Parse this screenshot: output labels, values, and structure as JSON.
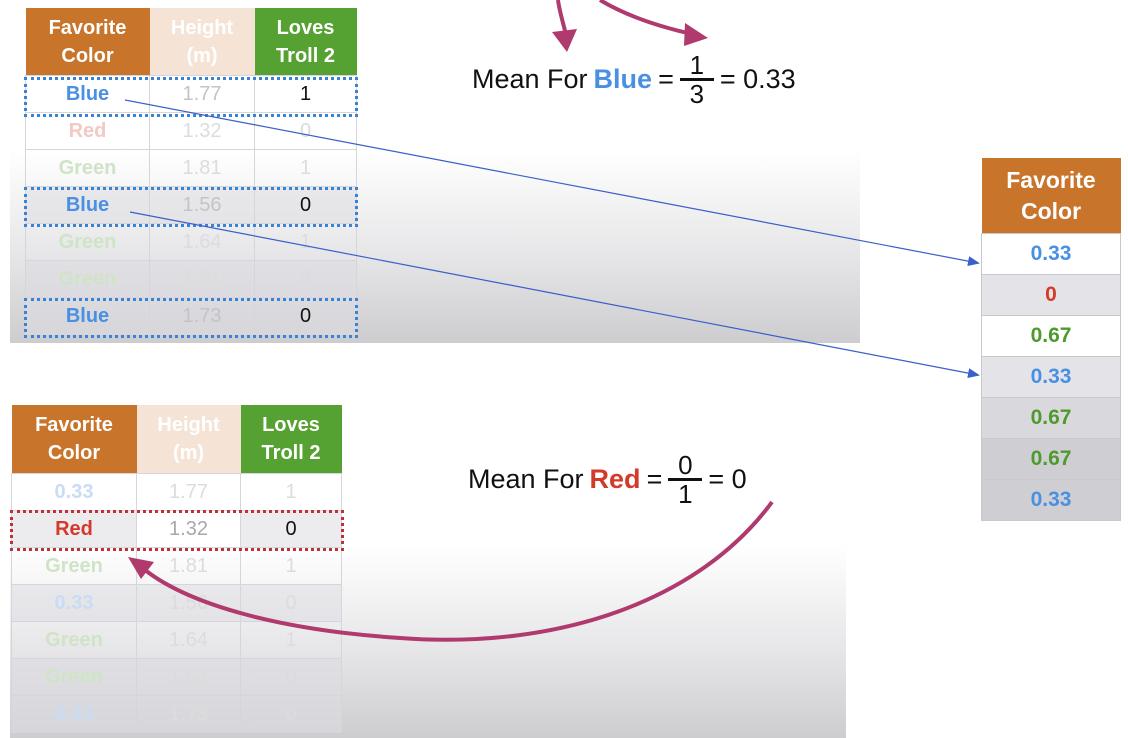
{
  "table1": {
    "headers": {
      "color": "Favorite Color",
      "height": "Height (m)",
      "loves": "Loves Troll 2"
    },
    "rows": [
      {
        "color": "Blue",
        "height": "1.77",
        "loves": "1"
      },
      {
        "color": "Red",
        "height": "1.32",
        "loves": "0"
      },
      {
        "color": "Green",
        "height": "1.81",
        "loves": "1"
      },
      {
        "color": "Blue",
        "height": "1.56",
        "loves": "0"
      },
      {
        "color": "Green",
        "height": "1.64",
        "loves": "1"
      },
      {
        "color": "Green",
        "height": "1.61",
        "loves": "0"
      },
      {
        "color": "Blue",
        "height": "1.73",
        "loves": "0"
      }
    ]
  },
  "equation_blue": {
    "prefix": "Mean For",
    "keyword": "Blue",
    "equals": "=",
    "numerator": "1",
    "denominator": "3",
    "result": "= 0.33"
  },
  "equation_red": {
    "prefix": "Mean For",
    "keyword": "Red",
    "equals": "=",
    "numerator": "0",
    "denominator": "1",
    "result": "= 0"
  },
  "table2": {
    "headers": {
      "color": "Favorite Color",
      "height": "Height (m)",
      "loves": "Loves Troll 2"
    },
    "rows": [
      {
        "color": "0.33",
        "height": "1.77",
        "loves": "1"
      },
      {
        "color": "Red",
        "height": "1.32",
        "loves": "0"
      },
      {
        "color": "Green",
        "height": "1.81",
        "loves": "1"
      },
      {
        "color": "0.33",
        "height": "1.56",
        "loves": "0"
      },
      {
        "color": "Green",
        "height": "1.64",
        "loves": "1"
      },
      {
        "color": "Green",
        "height": "1.61",
        "loves": "0"
      },
      {
        "color": "0.33",
        "height": "1.73",
        "loves": "0"
      }
    ]
  },
  "result_table": {
    "header": "Favorite Color",
    "values": [
      "0.33",
      "0",
      "0.67",
      "0.33",
      "0.67",
      "0.67",
      "0.33"
    ]
  },
  "colors": {
    "header_orange": "#c8742a",
    "header_green": "#55a132",
    "blue": "#4a90e2",
    "red": "#d43a2a",
    "green": "#4e9a2e",
    "arrow_blue": "#3a5fc8",
    "arrow_magenta": "#b03a6e"
  }
}
